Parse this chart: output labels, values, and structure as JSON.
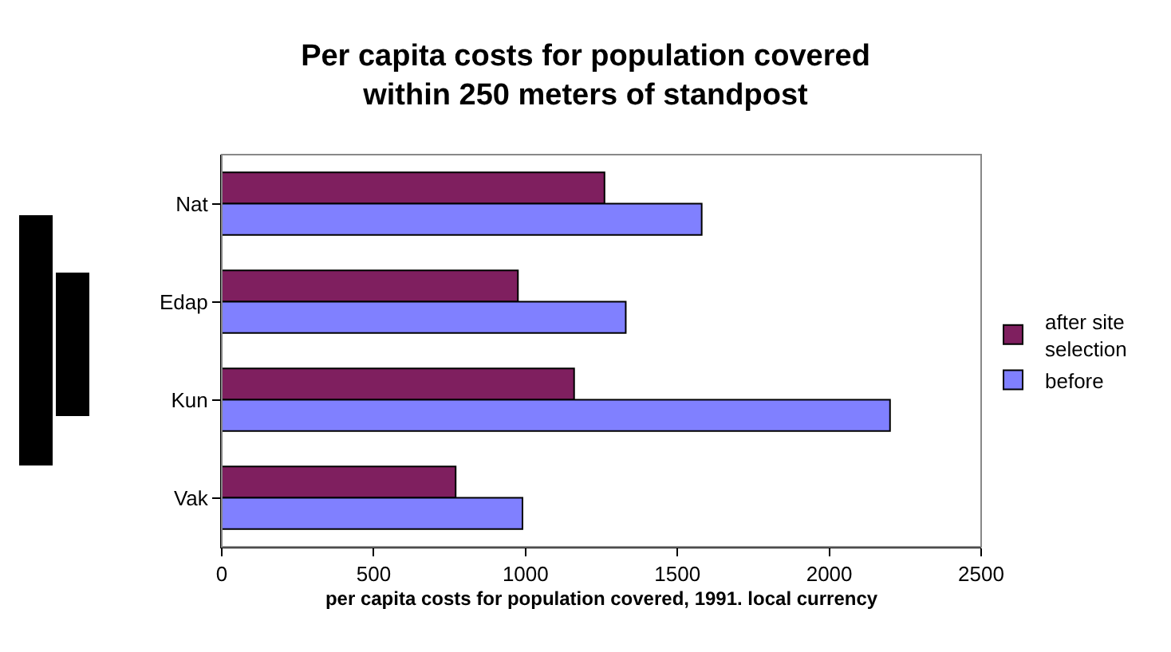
{
  "chart_data": {
    "type": "bar",
    "orientation": "horizontal",
    "title": "Per capita costs for population covered\nwithin 250 meters of standpost",
    "xlabel": "per capita costs for population covered, 1991. local currency",
    "categories": [
      "Nat",
      "Edap",
      "Kun",
      "Vak"
    ],
    "series": [
      {
        "name": "after site selection",
        "color": "#7f1f5f",
        "values": [
          1260,
          975,
          1160,
          770
        ]
      },
      {
        "name": "before",
        "color": "#8080ff",
        "values": [
          1580,
          1330,
          2200,
          990
        ]
      }
    ],
    "xlim": [
      0,
      2500
    ],
    "xticks": [
      0,
      500,
      1000,
      1500,
      2000,
      2500
    ],
    "grid": false,
    "legend": "right"
  }
}
